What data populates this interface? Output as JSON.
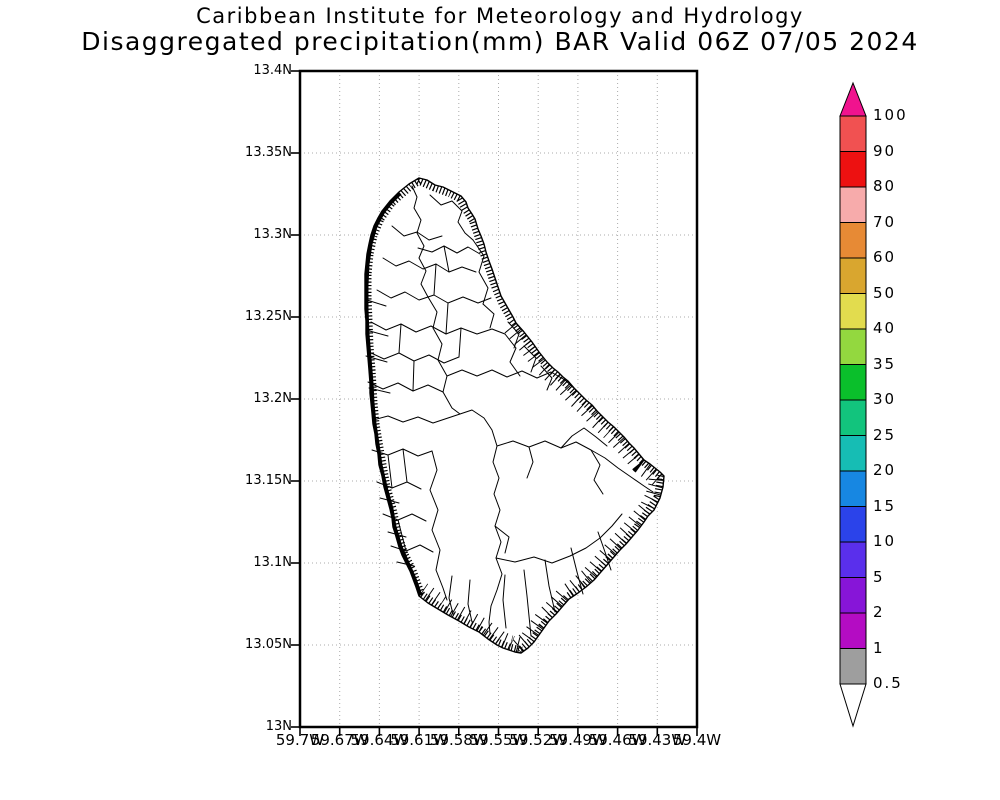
{
  "title": {
    "line1": "Caribbean Institute for Meteorology and Hydrology",
    "line2": "Disaggregated precipitation(mm) BAR Valid 06Z 07/05 2024"
  },
  "map": {
    "y_axis_labels": [
      "13.4N",
      "13.35N",
      "13.3N",
      "13.25N",
      "13.2N",
      "13.15N",
      "13.1N",
      "13.05N",
      "13N"
    ],
    "x_axis_labels": [
      "59.7W",
      "59.67W",
      "59.64W",
      "59.61W",
      "59.58W",
      "59.55W",
      "59.52W",
      "59.49W",
      "59.46W",
      "59.43W",
      "59.4W"
    ]
  },
  "colorbar": {
    "tick_labels": [
      "100",
      "90",
      "80",
      "70",
      "60",
      "50",
      "40",
      "35",
      "30",
      "25",
      "20",
      "15",
      "10",
      "5",
      "2",
      "1",
      "0.5"
    ],
    "segment_colors_top_to_bottom": [
      "#F15151",
      "#ED1111",
      "#F7ABAB",
      "#E78A35",
      "#D9A62F",
      "#E2DC4E",
      "#93D83F",
      "#0ABF2B",
      "#12C47D",
      "#16BDB4",
      "#1787E2",
      "#2B43EA",
      "#5A2FEC",
      "#8715D8",
      "#B40CC3",
      "#9E9E9E"
    ],
    "over_color": "#F0138E",
    "under_color": "#FFFFFF"
  },
  "colors": {
    "grid": "#ABABAB",
    "map_lines": "#000000",
    "background": "#FFFFFF",
    "text": "#000000"
  }
}
